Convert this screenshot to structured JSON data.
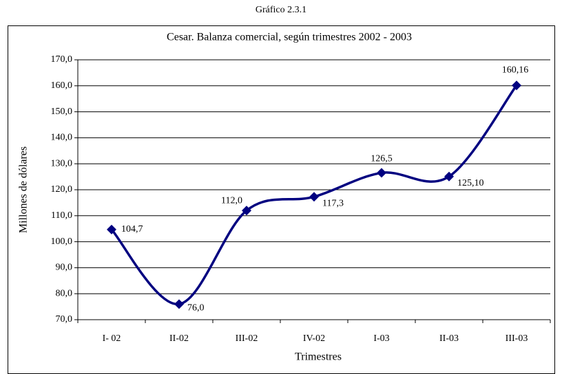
{
  "super_title": "Gráfico 2.3.1",
  "chart_data": {
    "type": "line",
    "title": "Cesar. Balanza comercial, según trimestres 2002 - 2003",
    "x_label": "Trimestres",
    "y_label": "Millones de dólares",
    "categories": [
      "I- 02",
      "II-02",
      "III-02",
      "IV-02",
      "I-03",
      "II-03",
      "III-03"
    ],
    "values": [
      104.7,
      76.0,
      112.0,
      117.3,
      126.5,
      125.1,
      160.16
    ],
    "value_labels": [
      "104,7",
      "76,0",
      "112,0",
      "117,3",
      "126,5",
      "125,10",
      "160,16"
    ],
    "color": "#000080",
    "smooth": true,
    "grid": true,
    "ylim": [
      70,
      170
    ],
    "yticks": [
      {
        "value": 70,
        "label": "70,0"
      },
      {
        "value": 80,
        "label": "80,0"
      },
      {
        "value": 90,
        "label": "90,0"
      },
      {
        "value": 100,
        "label": "100,0"
      },
      {
        "value": 110,
        "label": "110,0"
      },
      {
        "value": 120,
        "label": "120,0"
      },
      {
        "value": 130,
        "label": "130,0"
      },
      {
        "value": 140,
        "label": "140,0"
      },
      {
        "value": 150,
        "label": "150,0"
      },
      {
        "value": 160,
        "label": "160,0"
      },
      {
        "value": 170,
        "label": "170,0"
      }
    ]
  }
}
